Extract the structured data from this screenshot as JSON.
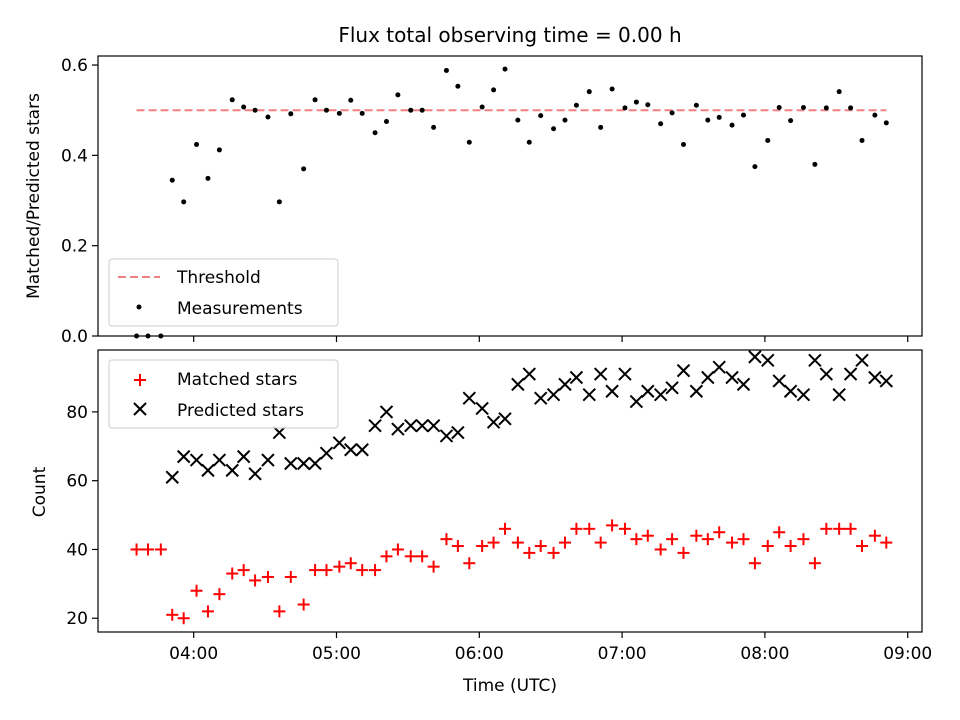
{
  "chart_data": [
    {
      "type": "scatter",
      "title": "Flux total observing time = 0.00 h",
      "xlabel": "",
      "ylabel": "Matched/Predicted stars",
      "xlim": [
        3.33,
        9.1
      ],
      "ylim": [
        0.0,
        0.62
      ],
      "yticks": [
        0.0,
        0.2,
        0.4,
        0.6
      ],
      "ytick_labels": [
        "0.0",
        "0.2",
        "0.4",
        "0.6"
      ],
      "xticks": [
        4,
        5,
        6,
        7,
        8,
        9
      ],
      "grid": false,
      "legend_position": "lower-left",
      "series": [
        {
          "name": "Threshold",
          "type": "line",
          "style": "dashed",
          "color": "#f08080",
          "x": [
            3.6,
            8.85
          ],
          "y": [
            0.5,
            0.5
          ]
        },
        {
          "name": "Measurements",
          "type": "scatter",
          "marker": "dot",
          "color": "#000000",
          "x": [
            3.6,
            3.68,
            3.77,
            3.85,
            3.93,
            4.02,
            4.1,
            4.18,
            4.27,
            4.35,
            4.43,
            4.52,
            4.6,
            4.68,
            4.77,
            4.85,
            4.93,
            5.02,
            5.1,
            5.18,
            5.27,
            5.35,
            5.43,
            5.52,
            5.6,
            5.68,
            5.77,
            5.85,
            5.93,
            6.02,
            6.1,
            6.18,
            6.27,
            6.35,
            6.43,
            6.52,
            6.6,
            6.68,
            6.77,
            6.85,
            6.93,
            7.02,
            7.1,
            7.18,
            7.27,
            7.35,
            7.43,
            7.52,
            7.6,
            7.68,
            7.77,
            7.85,
            7.93,
            8.02,
            8.1,
            8.18,
            8.27,
            8.35,
            8.43,
            8.52,
            8.6,
            8.68,
            8.77,
            8.85
          ],
          "y": [
            0.0,
            0.0,
            0.0,
            0.345,
            0.297,
            0.424,
            0.349,
            0.412,
            0.523,
            0.507,
            0.5,
            0.485,
            0.297,
            0.492,
            0.37,
            0.523,
            0.5,
            0.493,
            0.522,
            0.493,
            0.45,
            0.475,
            0.534,
            0.5,
            0.5,
            0.462,
            0.588,
            0.553,
            0.429,
            0.507,
            0.545,
            0.591,
            0.478,
            0.429,
            0.488,
            0.459,
            0.478,
            0.511,
            0.541,
            0.462,
            0.547,
            0.505,
            0.518,
            0.512,
            0.47,
            0.494,
            0.424,
            0.511,
            0.478,
            0.484,
            0.467,
            0.489,
            0.375,
            0.433,
            0.506,
            0.477,
            0.506,
            0.38,
            0.505,
            0.541,
            0.505,
            0.433,
            0.489,
            0.472
          ]
        }
      ]
    },
    {
      "type": "scatter",
      "title": "",
      "xlabel": "Time (UTC)",
      "ylabel": "Count",
      "xlim": [
        3.33,
        9.1
      ],
      "ylim": [
        16,
        98
      ],
      "yticks": [
        20,
        40,
        60,
        80
      ],
      "ytick_labels": [
        "20",
        "40",
        "60",
        "80"
      ],
      "xticks": [
        4,
        5,
        6,
        7,
        8,
        9
      ],
      "xtick_labels": [
        "04:00",
        "05:00",
        "06:00",
        "07:00",
        "08:00",
        "09:00"
      ],
      "grid": false,
      "legend_position": "upper-left",
      "series": [
        {
          "name": "Matched stars",
          "marker": "plus",
          "color": "#ff0000",
          "x": [
            3.6,
            3.68,
            3.77,
            3.85,
            3.93,
            4.02,
            4.1,
            4.18,
            4.27,
            4.35,
            4.43,
            4.52,
            4.6,
            4.68,
            4.77,
            4.85,
            4.93,
            5.02,
            5.1,
            5.18,
            5.27,
            5.35,
            5.43,
            5.52,
            5.6,
            5.68,
            5.77,
            5.85,
            5.93,
            6.02,
            6.1,
            6.18,
            6.27,
            6.35,
            6.43,
            6.52,
            6.6,
            6.68,
            6.77,
            6.85,
            6.93,
            7.02,
            7.1,
            7.18,
            7.27,
            7.35,
            7.43,
            7.52,
            7.6,
            7.68,
            7.77,
            7.85,
            7.93,
            8.02,
            8.1,
            8.18,
            8.27,
            8.35,
            8.43,
            8.52,
            8.6,
            8.68,
            8.77,
            8.85
          ],
          "y": [
            40,
            40,
            40,
            21,
            20,
            28,
            22,
            27,
            33,
            34,
            31,
            32,
            22,
            32,
            24,
            34,
            34,
            35,
            36,
            34,
            34,
            38,
            40,
            38,
            38,
            35,
            43,
            41,
            36,
            41,
            42,
            46,
            42,
            39,
            41,
            39,
            42,
            46,
            46,
            42,
            47,
            46,
            43,
            44,
            40,
            43,
            39,
            44,
            43,
            45,
            42,
            43,
            36,
            41,
            45,
            41,
            43,
            36,
            46,
            46,
            46,
            41,
            44,
            42
          ]
        },
        {
          "name": "Predicted stars",
          "marker": "x",
          "color": "#000000",
          "x": [
            3.85,
            3.93,
            4.02,
            4.1,
            4.18,
            4.27,
            4.35,
            4.43,
            4.52,
            4.6,
            4.68,
            4.77,
            4.85,
            4.93,
            5.02,
            5.1,
            5.18,
            5.27,
            5.35,
            5.43,
            5.52,
            5.6,
            5.68,
            5.77,
            5.85,
            5.93,
            6.02,
            6.1,
            6.18,
            6.27,
            6.35,
            6.43,
            6.52,
            6.6,
            6.68,
            6.77,
            6.85,
            6.93,
            7.02,
            7.1,
            7.18,
            7.27,
            7.35,
            7.43,
            7.52,
            7.6,
            7.68,
            7.77,
            7.85,
            7.93,
            8.02,
            8.1,
            8.18,
            8.27,
            8.35,
            8.43,
            8.52,
            8.6,
            8.68,
            8.77,
            8.85
          ],
          "y": [
            61,
            67,
            66,
            63,
            66,
            63,
            67,
            62,
            66,
            74,
            65,
            65,
            65,
            68,
            71,
            69,
            69,
            76,
            80,
            75,
            76,
            76,
            76,
            73,
            74,
            84,
            81,
            77,
            78,
            88,
            91,
            84,
            85,
            88,
            90,
            85,
            91,
            86,
            91,
            83,
            86,
            85,
            87,
            92,
            86,
            90,
            93,
            90,
            88,
            96,
            95,
            89,
            86,
            85,
            95,
            91,
            85,
            91,
            95,
            90,
            89
          ]
        }
      ]
    }
  ]
}
